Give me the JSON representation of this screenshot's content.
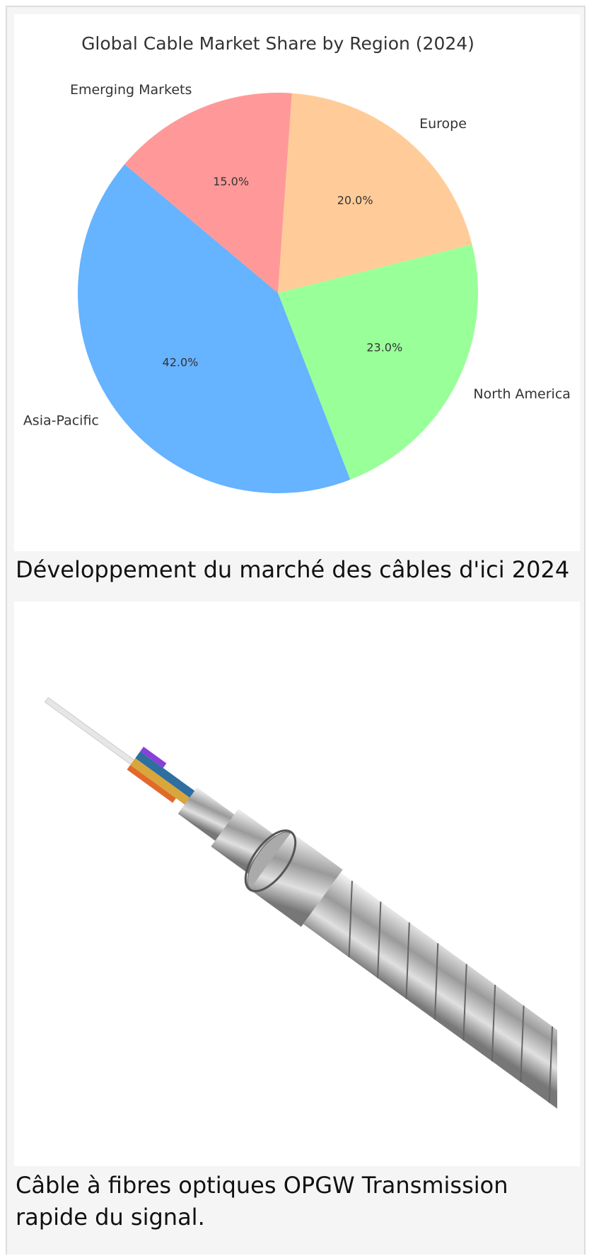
{
  "chart_data": {
    "type": "pie",
    "title": "Global Cable Market Share by Region (2024)",
    "categories": [
      "Europe",
      "North America",
      "Asia-Pacific",
      "Emerging Markets"
    ],
    "values": [
      20,
      23,
      42,
      15
    ],
    "value_labels": [
      "20.0%",
      "23.0%",
      "42.0%",
      "15.0%"
    ],
    "colors": [
      "#ffcc99",
      "#99ff99",
      "#66b3ff",
      "#ff9999"
    ]
  },
  "captions": [
    "Développement du marché des câbles d'ici 2024",
    "Câble à fibres optiques OPGW Transmission rapide du signal."
  ]
}
